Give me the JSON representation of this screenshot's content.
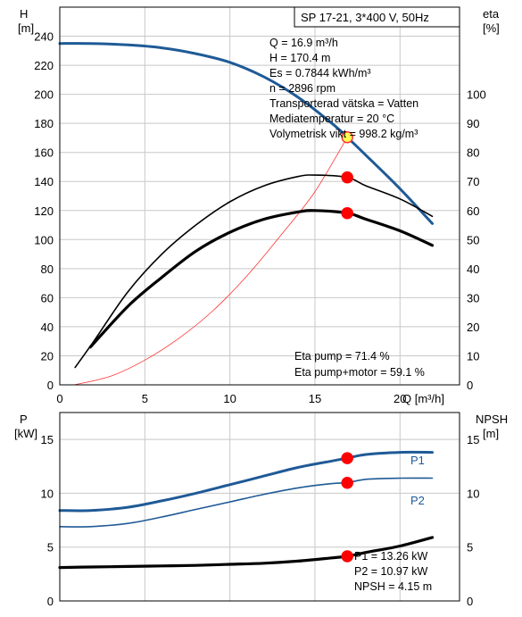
{
  "chart_data": [
    {
      "type": "line",
      "header": "SP 17-21, 3*400 V, 50Hz",
      "xlabel": "Q [m³/h]",
      "ylabel_left": [
        "H",
        "[m]"
      ],
      "ylabel_right": [
        "eta",
        "[%]"
      ],
      "xlim": [
        0,
        23.5
      ],
      "ylim_left": [
        0,
        260
      ],
      "ylim_right": [
        0,
        130
      ],
      "x_ticks": [
        "0",
        "5",
        "10",
        "15",
        "20"
      ],
      "y_ticks_left": [
        "0",
        "20",
        "40",
        "60",
        "80",
        "100",
        "120",
        "140",
        "160",
        "180",
        "200",
        "220",
        "240"
      ],
      "y_ticks_right": [
        "0",
        "10",
        "20",
        "30",
        "40",
        "50",
        "60",
        "70",
        "80",
        "90",
        "100"
      ],
      "grid": true,
      "info_lines": [
        "Q = 16.9 m³/h",
        "H = 170.4 m",
        "Es = 0.7844 kWh/m³",
        "n = 2896 rpm",
        "Transporterad vätska = Vatten",
        "Mediatemperatur = 20 °C",
        "Volymetrisk vikt = 998.2 kg/m³"
      ],
      "bottom_lines": [
        "Eta pump = 71.4 %",
        "Eta pump+motor = 59.1 %"
      ],
      "series": [
        {
          "key": "head",
          "axis": "left",
          "color": "#1f5a96",
          "x": [
            0,
            1.8,
            4,
            6,
            8,
            10,
            12,
            14,
            16,
            16.9,
            18,
            20,
            21.9
          ],
          "y": [
            235,
            235,
            234,
            232,
            228,
            222,
            212,
            198,
            180,
            170.4,
            158,
            135,
            111
          ]
        },
        {
          "key": "system-curve",
          "axis": "left",
          "color": "#ff3333",
          "x": [
            0.9,
            3,
            5,
            7,
            9,
            11,
            13,
            15,
            16.9
          ],
          "y": [
            0.1,
            6,
            17,
            32,
            51,
            75,
            103,
            133,
            170.4
          ]
        },
        {
          "key": "eta-pump",
          "axis": "right",
          "color": "#000000",
          "x": [
            0.9,
            2,
            4,
            6,
            8,
            10,
            12,
            14,
            15,
            16.9,
            18,
            20,
            21.9
          ],
          "y": [
            6,
            15,
            32,
            45,
            55,
            63,
            68.5,
            71.7,
            72.2,
            71.4,
            68.5,
            64,
            58
          ]
        },
        {
          "key": "eta-pump-motor",
          "axis": "right",
          "color": "#000000",
          "x": [
            1.8,
            4,
            6,
            8,
            10,
            12,
            14,
            15,
            16.9,
            18,
            20,
            21.9
          ],
          "y": [
            13,
            27,
            37,
            46,
            52.5,
            57,
            59.5,
            60,
            59.1,
            57,
            53,
            48
          ]
        }
      ],
      "markers": [
        {
          "key": "duty-head",
          "x": 16.9,
          "y": 170.4,
          "axis": "left",
          "color": "#ffff55",
          "stroke": "#ff3333"
        },
        {
          "key": "duty-eta-pump",
          "x": 16.9,
          "y": 71.4,
          "axis": "right",
          "color": "#ff0000",
          "stroke": "#ff0000"
        },
        {
          "key": "duty-eta-total",
          "x": 16.9,
          "y": 59.1,
          "axis": "right",
          "color": "#ff0000",
          "stroke": "#ff0000"
        }
      ]
    },
    {
      "type": "line",
      "ylabel_left": [
        "P",
        "[kW]"
      ],
      "ylabel_right": [
        "NPSH",
        "[m]"
      ],
      "xlim": [
        0,
        23.5
      ],
      "ylim_left": [
        0,
        17.5
      ],
      "ylim_right": [
        0,
        17.5
      ],
      "y_ticks_left": [
        "0",
        "5",
        "10",
        "15"
      ],
      "y_ticks_right": [
        "0",
        "5",
        "10",
        "15"
      ],
      "grid": true,
      "series": [
        {
          "key": "P1",
          "name": "P1",
          "axis": "left",
          "color": "#1f5a96",
          "x": [
            0,
            1.8,
            4,
            6,
            8,
            10,
            12,
            14,
            16,
            16.9,
            18,
            20,
            21.9
          ],
          "y": [
            8.4,
            8.4,
            8.7,
            9.3,
            10.0,
            10.8,
            11.6,
            12.4,
            13.0,
            13.26,
            13.6,
            13.8,
            13.8
          ]
        },
        {
          "key": "P2",
          "name": "P2",
          "axis": "left",
          "color": "#1f5a96",
          "x": [
            0,
            1.8,
            4,
            6,
            8,
            10,
            12,
            14,
            16,
            16.9,
            18,
            20,
            21.9
          ],
          "y": [
            6.9,
            6.9,
            7.2,
            7.8,
            8.5,
            9.2,
            9.9,
            10.5,
            10.9,
            10.97,
            11.3,
            11.4,
            11.4
          ]
        },
        {
          "key": "NPSH",
          "axis": "right",
          "color": "#000000",
          "x": [
            0,
            1.8,
            4,
            6,
            8,
            10,
            12,
            14,
            16,
            16.9,
            18,
            20,
            21.9
          ],
          "y": [
            3.1,
            3.15,
            3.2,
            3.25,
            3.3,
            3.4,
            3.5,
            3.7,
            4.0,
            4.15,
            4.5,
            5.1,
            5.9
          ]
        }
      ],
      "markers": [
        {
          "key": "duty-P1",
          "x": 16.9,
          "y": 13.26,
          "axis": "left",
          "color": "#ff0000",
          "stroke": "#ff0000"
        },
        {
          "key": "duty-P2",
          "x": 16.9,
          "y": 10.97,
          "axis": "left",
          "color": "#ff0000",
          "stroke": "#ff0000"
        },
        {
          "key": "duty-NPSH",
          "x": 16.9,
          "y": 4.15,
          "axis": "right",
          "color": "#ff0000",
          "stroke": "#ff0000"
        }
      ],
      "bottom_lines": [
        "P1 = 13.26 kW",
        "P2 = 10.97 kW",
        "NPSH = 4.15 m"
      ]
    }
  ]
}
